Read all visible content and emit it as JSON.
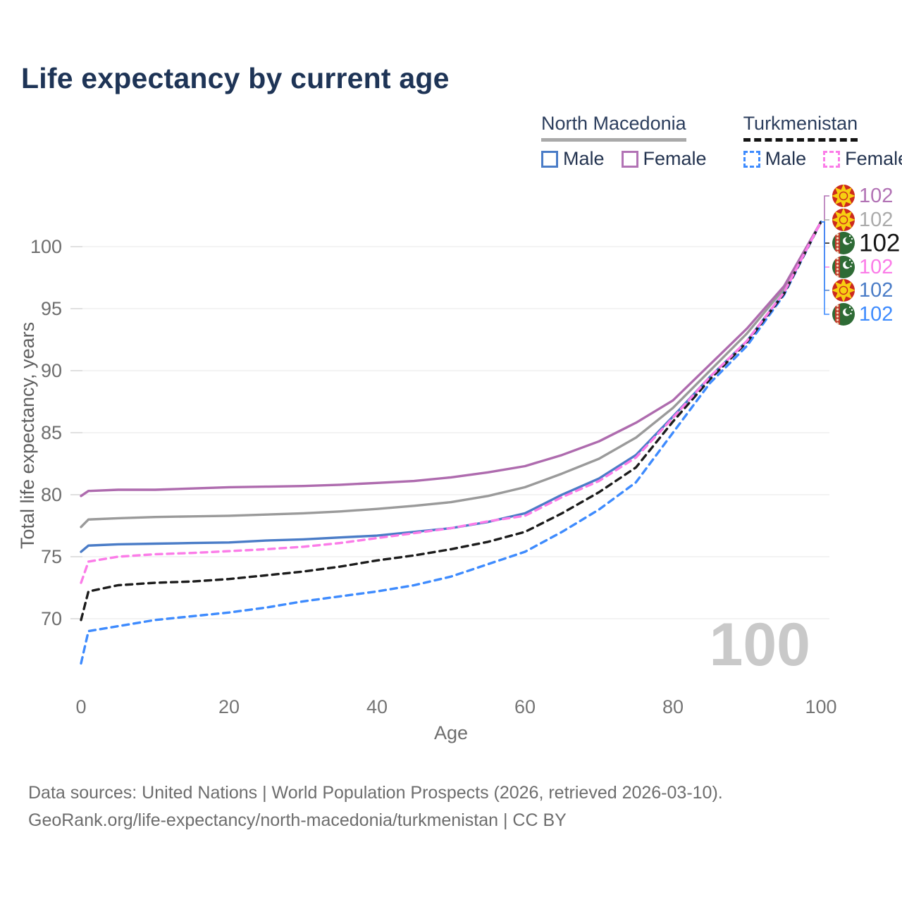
{
  "title": "Life expectancy by current age",
  "legend": {
    "groups": [
      {
        "country": "North Macedonia",
        "line_style": "solid",
        "items": [
          {
            "label": "Male",
            "color": "#4a7cc7",
            "swatch_style": "solid"
          },
          {
            "label": "Female",
            "color": "#b273b5",
            "swatch_style": "solid"
          }
        ]
      },
      {
        "country": "Turkmenistan",
        "line_style": "dashed",
        "items": [
          {
            "label": "Male",
            "color": "#3e8bfe",
            "swatch_style": "dashed"
          },
          {
            "label": "Female",
            "color": "#fb7ce8",
            "swatch_style": "dashed"
          }
        ]
      }
    ]
  },
  "watermark": "100",
  "footer": {
    "line1": "Data sources: United Nations | World Population Prospects (2026, retrieved 2026-03-10).",
    "line2": "GeoRank.org/life-expectancy/north-macedonia/turkmenistan | CC BY"
  },
  "chart_data": {
    "type": "line",
    "title": "Life expectancy by current age",
    "xlabel": "Age",
    "ylabel": "Total life expectancy, years",
    "xlim": [
      0,
      100
    ],
    "ylim": [
      66,
      103
    ],
    "x_ticks": [
      0,
      20,
      40,
      60,
      80,
      100
    ],
    "y_ticks": [
      70,
      75,
      80,
      85,
      90,
      95,
      100
    ],
    "grid": true,
    "legend_position": "top-right",
    "x": [
      0,
      1,
      5,
      10,
      15,
      20,
      25,
      30,
      35,
      40,
      45,
      50,
      55,
      60,
      65,
      70,
      75,
      80,
      85,
      90,
      95,
      100
    ],
    "series": [
      {
        "name": "North Macedonia Male",
        "country": "North Macedonia",
        "sex": "Male",
        "color": "#4a7cc7",
        "dashed": false,
        "flag": "mk",
        "values": [
          75.4,
          75.9,
          76.0,
          76.05,
          76.1,
          76.15,
          76.3,
          76.4,
          76.55,
          76.7,
          77.0,
          77.3,
          77.8,
          78.5,
          80.0,
          81.3,
          83.2,
          86.3,
          89.5,
          92.4,
          96.3,
          102
        ]
      },
      {
        "name": "North Macedonia Both sexes",
        "country": "North Macedonia",
        "sex": "Both",
        "color": "#9a9a9a",
        "dashed": false,
        "flag": "mk",
        "values": [
          77.4,
          78.0,
          78.1,
          78.2,
          78.25,
          78.3,
          78.4,
          78.5,
          78.65,
          78.85,
          79.1,
          79.4,
          79.9,
          80.6,
          81.7,
          82.9,
          84.6,
          87.0,
          90.0,
          93.0,
          96.6,
          102
        ]
      },
      {
        "name": "North Macedonia Female",
        "country": "North Macedonia",
        "sex": "Female",
        "color": "#ae6bae",
        "dashed": false,
        "flag": "mk",
        "values": [
          79.9,
          80.3,
          80.4,
          80.4,
          80.5,
          80.6,
          80.65,
          80.7,
          80.8,
          80.95,
          81.1,
          81.4,
          81.8,
          82.3,
          83.2,
          84.3,
          85.8,
          87.6,
          90.5,
          93.4,
          96.8,
          102
        ]
      },
      {
        "name": "Turkmenistan Male",
        "country": "Turkmenistan",
        "sex": "Male",
        "color": "#3e8bfe",
        "dashed": true,
        "flag": "tm",
        "values": [
          66.4,
          69.0,
          69.4,
          69.9,
          70.2,
          70.5,
          70.9,
          71.4,
          71.8,
          72.2,
          72.7,
          73.4,
          74.4,
          75.4,
          77.0,
          78.8,
          81.0,
          85.0,
          89.0,
          92.0,
          96.1,
          102
        ]
      },
      {
        "name": "Turkmenistan Both sexes",
        "country": "Turkmenistan",
        "sex": "Both",
        "color": "#1c1c1c",
        "dashed": true,
        "flag": "tm",
        "values": [
          69.9,
          72.2,
          72.7,
          72.9,
          73.0,
          73.2,
          73.5,
          73.8,
          74.2,
          74.7,
          75.1,
          75.6,
          76.2,
          77.0,
          78.5,
          80.2,
          82.2,
          85.9,
          89.3,
          92.3,
          96.2,
          102
        ]
      },
      {
        "name": "Turkmenistan Female",
        "country": "Turkmenistan",
        "sex": "Female",
        "color": "#fb7ce8",
        "dashed": true,
        "flag": "tm",
        "values": [
          72.9,
          74.6,
          75.0,
          75.2,
          75.3,
          75.45,
          75.6,
          75.8,
          76.1,
          76.5,
          76.9,
          77.3,
          77.85,
          78.3,
          79.8,
          81.1,
          83.0,
          86.2,
          89.5,
          92.4,
          96.3,
          102
        ]
      }
    ],
    "end_labels": [
      {
        "text": "102",
        "flag": "mk",
        "color": "#b273b5",
        "big": false,
        "series": "North Macedonia Female"
      },
      {
        "text": "102",
        "flag": "mk",
        "color": "#ababab",
        "big": false,
        "series": "North Macedonia Both sexes"
      },
      {
        "text": "102",
        "flag": "tm",
        "color": "#141414",
        "big": true,
        "series": "Turkmenistan Both sexes"
      },
      {
        "text": "102",
        "flag": "tm",
        "color": "#fb7ce8",
        "big": false,
        "series": "Turkmenistan Female"
      },
      {
        "text": "102",
        "flag": "mk",
        "color": "#4a7cc7",
        "big": false,
        "series": "North Macedonia Male"
      },
      {
        "text": "102",
        "flag": "tm",
        "color": "#3e8bfe",
        "big": false,
        "series": "Turkmenistan Male"
      }
    ]
  }
}
